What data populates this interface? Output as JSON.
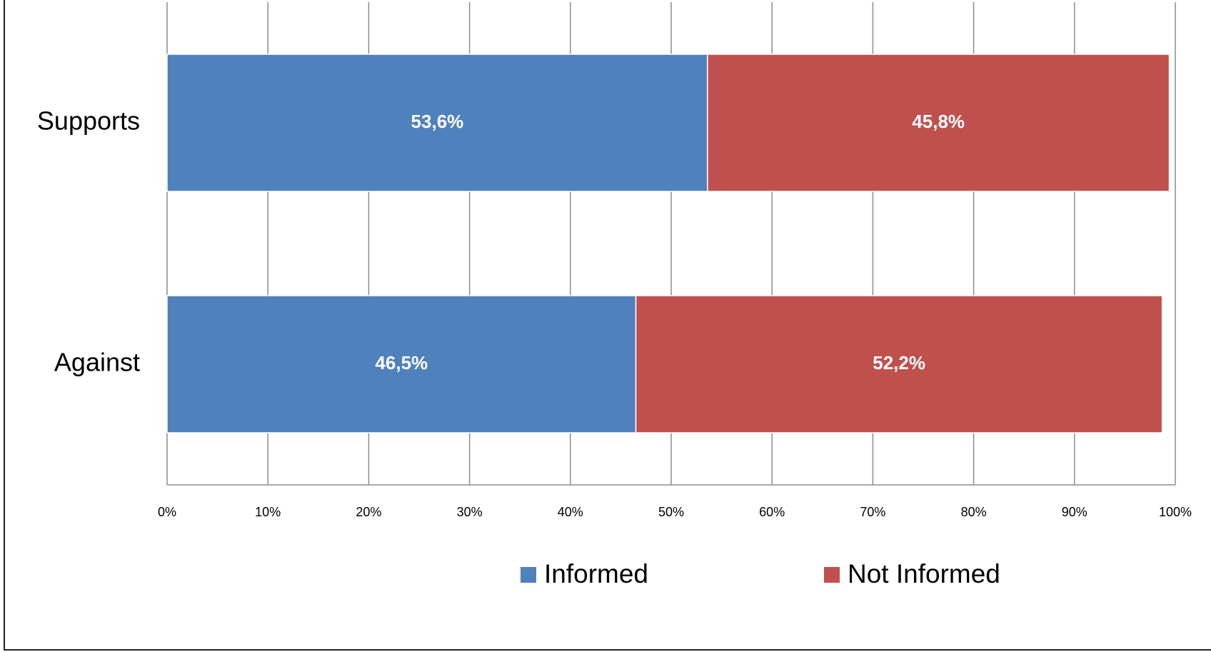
{
  "chart_data": {
    "type": "stacked-bar-horizontal",
    "categories": [
      "Supports",
      "Against"
    ],
    "series": [
      {
        "name": "Informed",
        "color": "#4f81bd",
        "values": [
          53.6,
          46.5
        ],
        "value_labels": [
          "53,6%",
          "46,5%"
        ]
      },
      {
        "name": "Not Informed",
        "color": "#c0504d",
        "values": [
          45.8,
          52.2
        ],
        "value_labels": [
          "45,8%",
          "52,2%"
        ]
      }
    ],
    "xlim": [
      0,
      100
    ],
    "xticks": [
      {
        "value": 0,
        "label": "0%"
      },
      {
        "value": 10,
        "label": "10%"
      },
      {
        "value": 20,
        "label": "20%"
      },
      {
        "value": 30,
        "label": "30%"
      },
      {
        "value": 40,
        "label": "40%"
      },
      {
        "value": 50,
        "label": "50%"
      },
      {
        "value": 60,
        "label": "60%"
      },
      {
        "value": 70,
        "label": "70%"
      },
      {
        "value": 80,
        "label": "80%"
      },
      {
        "value": 90,
        "label": "90%"
      },
      {
        "value": 100,
        "label": "100%"
      }
    ],
    "grid": true,
    "legend": "bottom"
  }
}
